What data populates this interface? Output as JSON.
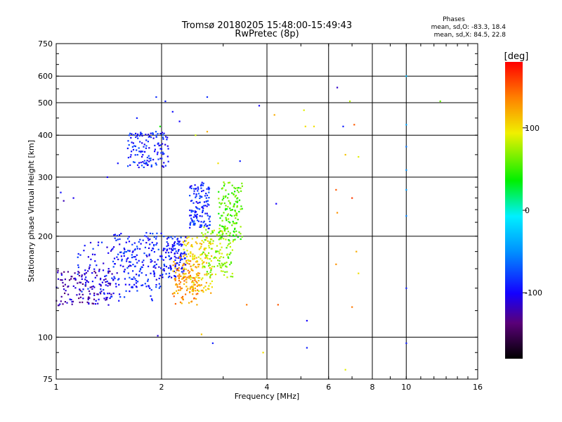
{
  "chart_data": {
    "type": "scatter",
    "title": "Tromsø 20180205 15:48:00-15:49:43",
    "subtitle": "RwPretec (8p)",
    "xlabel": "Frequency [MHz]",
    "ylabel": "Stationary phase Virtual Height [km]",
    "x_scale": "log",
    "y_scale": "log",
    "xlim": [
      1,
      16
    ],
    "ylim": [
      75,
      750
    ],
    "x_ticks": [
      1,
      2,
      4,
      6,
      8,
      10,
      16
    ],
    "x_tick_labels": [
      "1",
      "2",
      "4",
      "6",
      "8",
      "10",
      "16"
    ],
    "x_grid": [
      2,
      4,
      6,
      8,
      10
    ],
    "y_ticks": [
      75,
      100,
      200,
      300,
      400,
      500,
      600,
      750
    ],
    "y_tick_labels": [
      "75",
      "100",
      "200",
      "300",
      "400",
      "500",
      "600",
      "750"
    ],
    "y_grid": [
      100,
      200,
      300,
      400,
      500,
      600
    ],
    "grid": true,
    "stats": {
      "heading": "Phases",
      "line_o": "mean, sd,O: -83.3, 18.4",
      "line_x": "mean, sd,X: 84.5, 22.8"
    },
    "colorbar": {
      "label": "[deg]",
      "range": [
        -180,
        180
      ],
      "ticks": [
        100,
        0,
        -100
      ],
      "tick_labels": [
        "100",
        "0",
        "-100"
      ]
    },
    "series": [
      {
        "mode": "O",
        "phase_mean": -83.3,
        "phase_sd": 18.4,
        "clusters": [
          {
            "f": [
              1.0,
              1.45
            ],
            "h": [
              124,
              160
            ],
            "phase": -120
          },
          {
            "f": [
              1.15,
              1.95
            ],
            "h": [
              128,
              195
            ],
            "phase": -95
          },
          {
            "f": [
              1.45,
              2.0
            ],
            "h": [
              140,
              205
            ],
            "phase": -90
          },
          {
            "f": [
              1.6,
              2.1
            ],
            "h": [
              320,
              410
            ],
            "phase": -90
          },
          {
            "f": [
              2.0,
              2.35
            ],
            "h": [
              150,
              200
            ],
            "phase": -92
          },
          {
            "f": [
              2.4,
              2.75
            ],
            "h": [
              210,
              290
            ],
            "phase": -88
          }
        ],
        "points": [
          {
            "f": 1.05,
            "h": 255,
            "phase": -120
          },
          {
            "f": 1.12,
            "h": 260,
            "phase": -105
          },
          {
            "f": 1.03,
            "h": 270,
            "phase": -95
          },
          {
            "f": 1.4,
            "h": 300,
            "phase": -100
          },
          {
            "f": 1.5,
            "h": 330,
            "phase": -95
          },
          {
            "f": 1.7,
            "h": 450,
            "phase": -90
          },
          {
            "f": 1.93,
            "h": 520,
            "phase": -85
          },
          {
            "f": 2.05,
            "h": 505,
            "phase": -90
          },
          {
            "f": 2.15,
            "h": 470,
            "phase": -95
          },
          {
            "f": 2.7,
            "h": 520,
            "phase": -85
          },
          {
            "f": 2.25,
            "h": 440,
            "phase": -100
          },
          {
            "f": 3.35,
            "h": 335,
            "phase": -90
          },
          {
            "f": 3.8,
            "h": 490,
            "phase": -100
          },
          {
            "f": 4.25,
            "h": 250,
            "phase": -100
          },
          {
            "f": 5.2,
            "h": 112,
            "phase": -100
          },
          {
            "f": 5.2,
            "h": 93,
            "phase": -90
          },
          {
            "f": 2.8,
            "h": 96,
            "phase": -90
          },
          {
            "f": 1.95,
            "h": 101,
            "phase": -110
          },
          {
            "f": 6.35,
            "h": 555,
            "phase": -115
          },
          {
            "f": 6.6,
            "h": 425,
            "phase": -90
          },
          {
            "f": 10.0,
            "h": 140,
            "phase": -90
          },
          {
            "f": 10.0,
            "h": 96,
            "phase": -90
          },
          {
            "f": 10.0,
            "h": 430,
            "phase": -40
          },
          {
            "f": 10.0,
            "h": 370,
            "phase": -60
          },
          {
            "f": 10.0,
            "h": 315,
            "phase": -50
          },
          {
            "f": 10.0,
            "h": 275,
            "phase": -45
          },
          {
            "f": 10.0,
            "h": 230,
            "phase": -55
          },
          {
            "f": 10.0,
            "h": 600,
            "phase": -30
          }
        ]
      },
      {
        "mode": "X",
        "phase_mean": 84.5,
        "phase_sd": 22.8,
        "clusters": [
          {
            "f": [
              2.15,
              2.55
            ],
            "h": [
              125,
              175
            ],
            "phase": 130
          },
          {
            "f": [
              2.3,
              2.8
            ],
            "h": [
              135,
              200
            ],
            "phase": 105
          },
          {
            "f": [
              2.6,
              3.2
            ],
            "h": [
              150,
              215
            ],
            "phase": 70
          },
          {
            "f": [
              2.9,
              3.4
            ],
            "h": [
              195,
              290
            ],
            "phase": 55
          }
        ],
        "points": [
          {
            "f": 2.5,
            "h": 400,
            "phase": 85
          },
          {
            "f": 2.7,
            "h": 410,
            "phase": 120
          },
          {
            "f": 2.9,
            "h": 330,
            "phase": 100
          },
          {
            "f": 2.6,
            "h": 102,
            "phase": 110
          },
          {
            "f": 3.5,
            "h": 125,
            "phase": 140
          },
          {
            "f": 3.9,
            "h": 90,
            "phase": 100
          },
          {
            "f": 4.2,
            "h": 460,
            "phase": 120
          },
          {
            "f": 4.3,
            "h": 125,
            "phase": 150
          },
          {
            "f": 5.15,
            "h": 425,
            "phase": 100
          },
          {
            "f": 5.45,
            "h": 425,
            "phase": 100
          },
          {
            "f": 6.3,
            "h": 275,
            "phase": 150
          },
          {
            "f": 6.35,
            "h": 235,
            "phase": 130
          },
          {
            "f": 6.3,
            "h": 165,
            "phase": 130
          },
          {
            "f": 6.7,
            "h": 350,
            "phase": 110
          },
          {
            "f": 6.9,
            "h": 505,
            "phase": 80
          },
          {
            "f": 7.0,
            "h": 260,
            "phase": 160
          },
          {
            "f": 7.1,
            "h": 430,
            "phase": 150
          },
          {
            "f": 7.0,
            "h": 123,
            "phase": 140
          },
          {
            "f": 7.2,
            "h": 180,
            "phase": 120
          },
          {
            "f": 7.3,
            "h": 155,
            "phase": 100
          },
          {
            "f": 7.3,
            "h": 345,
            "phase": 90
          },
          {
            "f": 6.7,
            "h": 80,
            "phase": 90
          },
          {
            "f": 12.5,
            "h": 505,
            "phase": 60
          },
          {
            "f": 5.1,
            "h": 475,
            "phase": 90
          },
          {
            "f": 1.98,
            "h": 425,
            "phase": 40
          }
        ]
      }
    ]
  }
}
